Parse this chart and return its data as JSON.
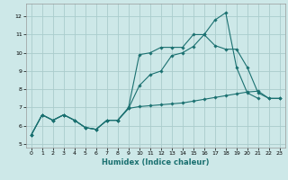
{
  "xlabel": "Humidex (Indice chaleur)",
  "background_color": "#cde8e8",
  "grid_color": "#aacccc",
  "line_color": "#1a7070",
  "xlim": [
    -0.5,
    23.5
  ],
  "ylim": [
    4.8,
    12.7
  ],
  "yticks": [
    5,
    6,
    7,
    8,
    9,
    10,
    11,
    12
  ],
  "xticks": [
    0,
    1,
    2,
    3,
    4,
    5,
    6,
    7,
    8,
    9,
    10,
    11,
    12,
    13,
    14,
    15,
    16,
    17,
    18,
    19,
    20,
    21,
    22,
    23
  ],
  "series": [
    [
      5.5,
      6.6,
      6.3,
      6.6,
      6.3,
      5.9,
      5.8,
      6.3,
      6.3,
      7.0,
      9.9,
      10.0,
      10.3,
      10.3,
      10.3,
      11.0,
      11.0,
      10.4,
      10.2,
      10.2,
      9.2,
      7.8,
      7.5,
      7.5
    ],
    [
      5.5,
      6.6,
      6.3,
      6.6,
      6.3,
      5.9,
      5.8,
      6.3,
      6.3,
      6.95,
      8.2,
      8.8,
      9.0,
      9.85,
      10.0,
      10.35,
      11.0,
      11.8,
      12.2,
      9.2,
      7.8,
      7.5,
      null,
      null
    ],
    [
      5.5,
      6.6,
      6.3,
      6.6,
      6.3,
      5.9,
      5.8,
      6.3,
      6.3,
      6.95,
      7.05,
      7.1,
      7.15,
      7.2,
      7.25,
      7.35,
      7.45,
      7.55,
      7.65,
      7.75,
      7.85,
      7.9,
      7.5,
      7.5
    ]
  ],
  "marker_size": 1.8,
  "line_width": 0.8,
  "xlabel_fontsize": 6.0,
  "tick_fontsize": 4.5
}
